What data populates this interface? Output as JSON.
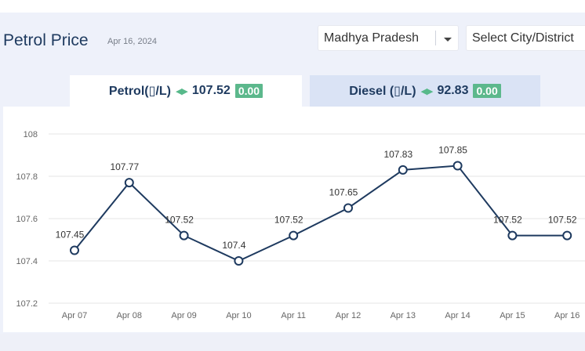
{
  "header": {
    "title": "Petrol Price",
    "date": "Apr 16, 2024",
    "state_select": "Madhya Pradesh",
    "city_select": "Select City/District"
  },
  "tabs": [
    {
      "label": "Petrol(▯/L)",
      "price": "107.52",
      "change": "0.00",
      "active": true
    },
    {
      "label": "Diesel (▯/L)",
      "price": "92.83",
      "change": "0.00",
      "active": false
    }
  ],
  "colors": {
    "line": "#1e3a5f",
    "badge": "#5cb88c",
    "arrow": "#57b98a",
    "grid": "#e5e5e5"
  },
  "chart_data": {
    "type": "line",
    "categories": [
      "Apr 07",
      "Apr 08",
      "Apr 09",
      "Apr 10",
      "Apr 11",
      "Apr 12",
      "Apr 13",
      "Apr 14",
      "Apr 15",
      "Apr 16"
    ],
    "series": [
      {
        "values": [
          107.45,
          107.77,
          107.52,
          107.4,
          107.52,
          107.65,
          107.83,
          107.85,
          107.52,
          107.52
        ]
      }
    ],
    "value_labels": [
      "107.45",
      "107.77",
      "107.52",
      "107.4",
      "107.52",
      "107.65",
      "107.83",
      "107.85",
      "107.52",
      "107.52"
    ],
    "yticks": [
      "107.2",
      "107.4",
      "107.6",
      "107.8",
      "108"
    ],
    "ylim": [
      107.2,
      108
    ],
    "grid": true,
    "title": "",
    "xlabel": "",
    "ylabel": ""
  }
}
